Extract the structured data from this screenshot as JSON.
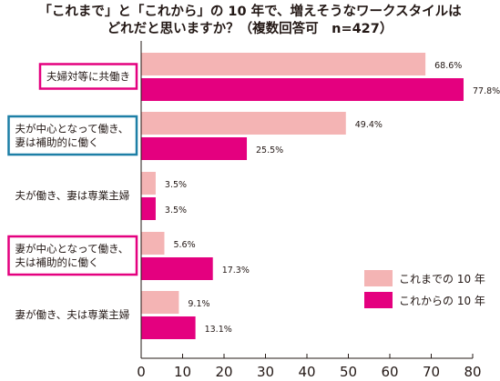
{
  "chart_data": {
    "type": "bar",
    "orientation": "horizontal",
    "title_lines": [
      "「これまで」と「これから」の 10 年で、増えそうなワークスタイルは",
      "どれだと思いますか？（複数回答可　n=427）"
    ],
    "categories": [
      [
        "夫婦対等に共働き"
      ],
      [
        "夫が中心となって働き、",
        "妻は補助的に働く"
      ],
      [
        "夫が働き、妻は専業主婦"
      ],
      [
        "妻が中心となって働き、",
        "夫は補助的に働く"
      ],
      [
        "妻が働き、夫は専業主婦"
      ]
    ],
    "highlighted_categories": [
      {
        "index": 0,
        "color": "#e4007f"
      },
      {
        "index": 1,
        "color": "#1d7fa6"
      },
      {
        "index": 3,
        "color": "#e4007f"
      }
    ],
    "series": [
      {
        "name": "これまでの 10 年",
        "color": "#f4b4b4",
        "values": [
          68.6,
          49.4,
          3.5,
          5.6,
          9.1
        ],
        "value_labels": [
          "68.6%",
          "49.4%",
          "3.5%",
          "5.6%",
          "9.1%"
        ]
      },
      {
        "name": "これからの 10 年",
        "color": "#e4007f",
        "values": [
          77.8,
          25.5,
          3.5,
          17.3,
          13.1
        ],
        "value_labels": [
          "77.8%",
          "25.5%",
          "3.5%",
          "17.3%",
          "13.1%"
        ]
      }
    ],
    "xlim": [
      0,
      80
    ],
    "xticks": [
      0,
      10,
      20,
      30,
      40,
      50,
      60,
      70,
      80
    ],
    "grid": false,
    "legend_position": "bottom-right"
  }
}
